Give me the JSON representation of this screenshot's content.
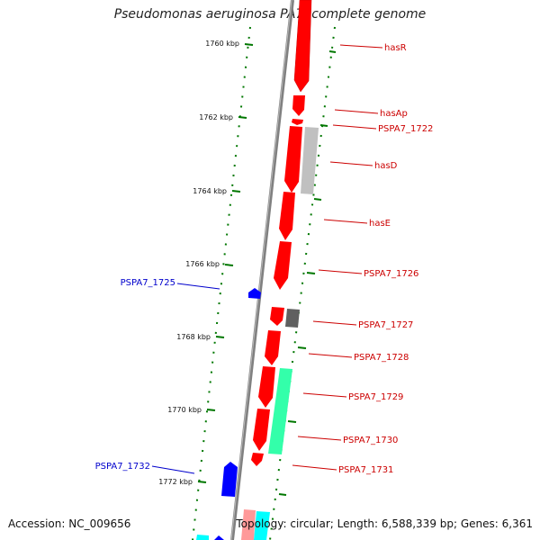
{
  "title": "Pseudomonas aeruginosa PA7, complete genome",
  "footer": {
    "accession": "Accession: NC_009656",
    "summary": "Topology: circular; Length: 6,588,339 bp; Genes: 6,361"
  },
  "colors": {
    "forward_cds": "#ff0000",
    "reverse_cds": "#0000ff",
    "tick": "#007700",
    "backbone": "#808080",
    "gray_feature": "#c0c0c0",
    "dark_feature": "#606060",
    "teal_feature": "#33ffaa",
    "cyan_feature": "#00ffff",
    "forward_label": "#cc0000",
    "reverse_label": "#0000cc"
  },
  "ticks": [
    {
      "kbp": 1760,
      "label": "1760 kbp"
    },
    {
      "kbp": 1762,
      "label": "1762 kbp"
    },
    {
      "kbp": 1764,
      "label": "1764 kbp"
    },
    {
      "kbp": 1766,
      "label": "1766 kbp"
    },
    {
      "kbp": 1768,
      "label": "1768 kbp"
    },
    {
      "kbp": 1770,
      "label": "1770 kbp"
    },
    {
      "kbp": 1772,
      "label": "1772 kbp"
    }
  ],
  "genes": [
    {
      "name": "hasR",
      "strand": "forward"
    },
    {
      "name": "hasAp",
      "strand": "forward"
    },
    {
      "name": "PSPA7_1722",
      "strand": "forward"
    },
    {
      "name": "hasD",
      "strand": "forward"
    },
    {
      "name": "hasE",
      "strand": "forward"
    },
    {
      "name": "PSPA7_1725",
      "strand": "reverse"
    },
    {
      "name": "PSPA7_1726",
      "strand": "forward"
    },
    {
      "name": "PSPA7_1727",
      "strand": "forward"
    },
    {
      "name": "PSPA7_1728",
      "strand": "forward"
    },
    {
      "name": "PSPA7_1729",
      "strand": "forward"
    },
    {
      "name": "PSPA7_1730",
      "strand": "forward"
    },
    {
      "name": "PSPA7_1731",
      "strand": "forward"
    },
    {
      "name": "PSPA7_1732",
      "strand": "reverse"
    }
  ]
}
